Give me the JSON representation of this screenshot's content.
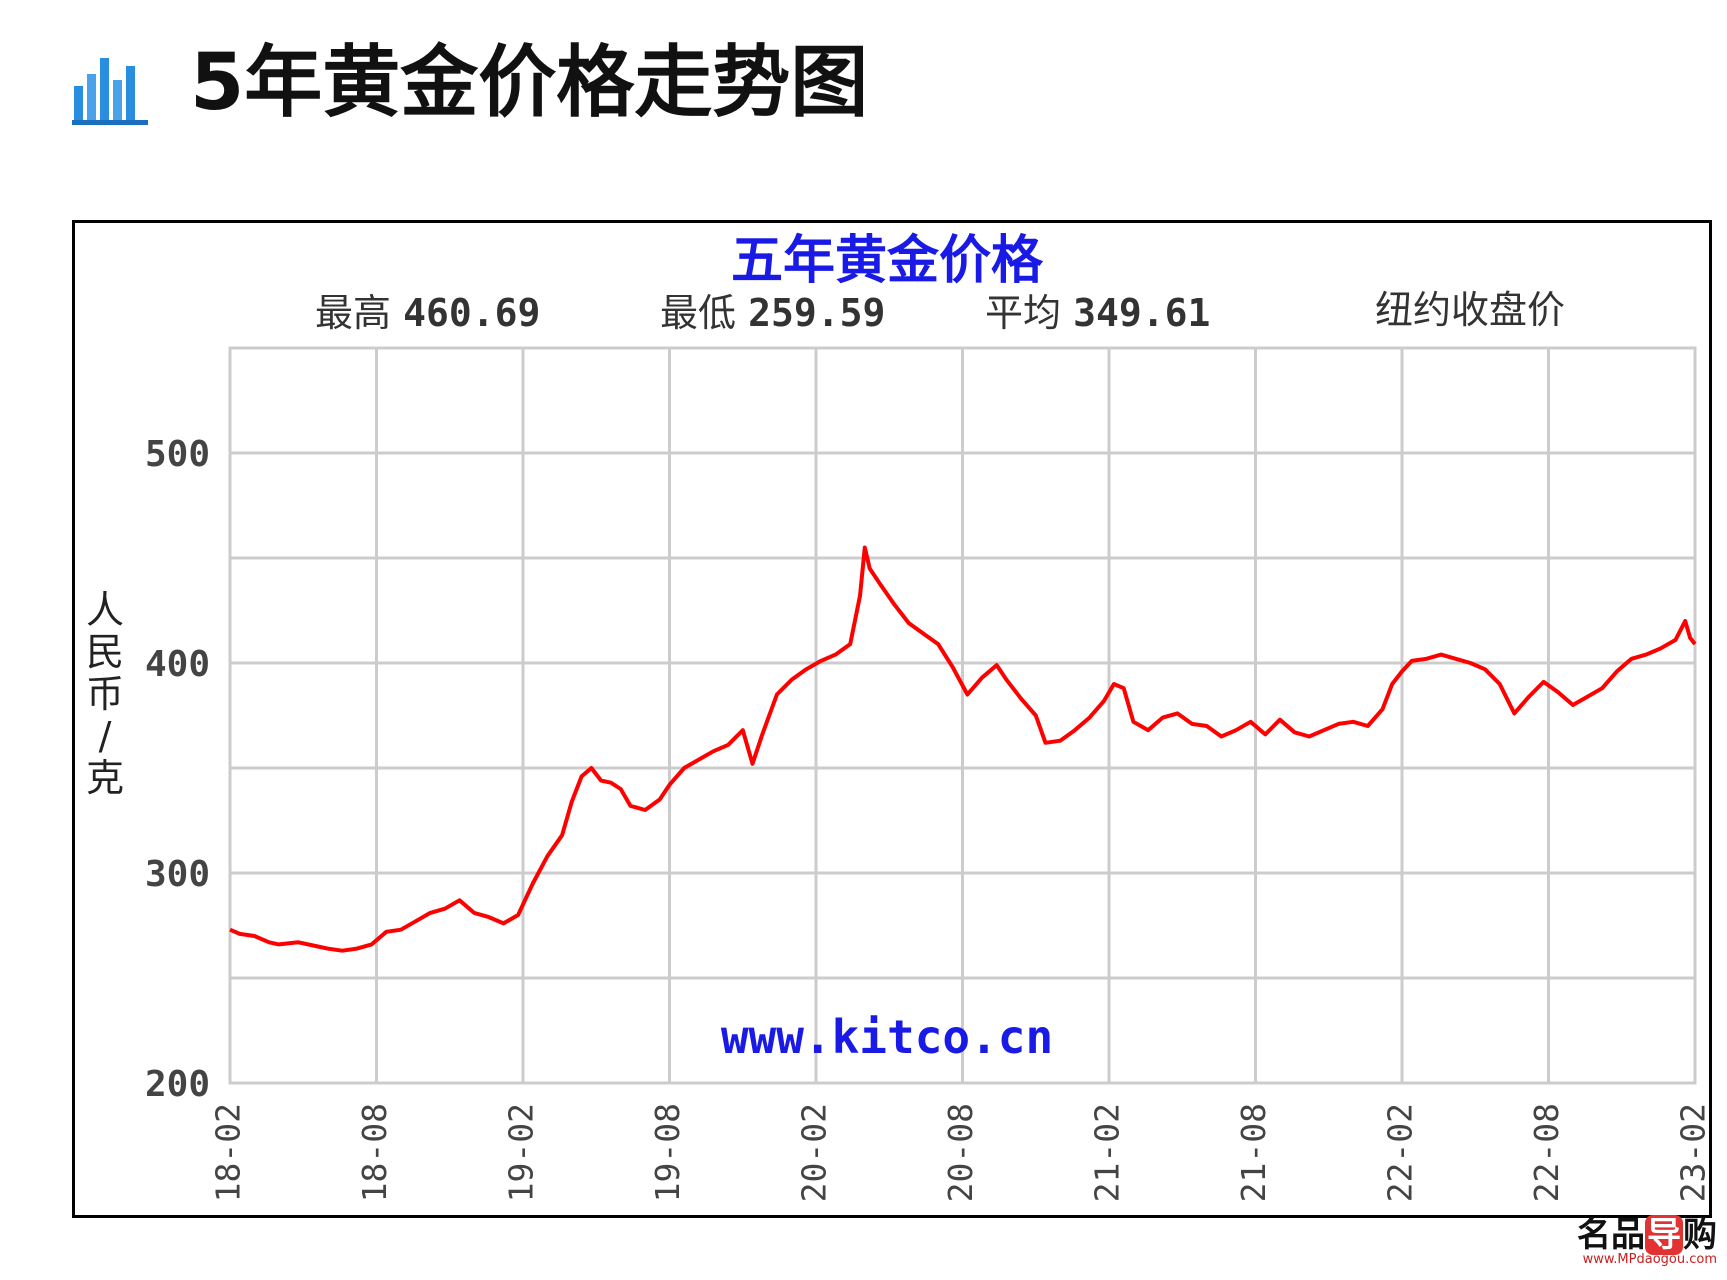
{
  "header": {
    "title": "5年黄金价格走势图",
    "icon": "bar-chart-icon"
  },
  "colors": {
    "line": "#ff0000",
    "title": "#1a1ae6",
    "grid": "#cccccc",
    "icon": "#2a8ee0"
  },
  "watermark": {
    "logo_a": "名品",
    "logo_b": "导",
    "logo_c": "购",
    "url": "www.MPdaogou.com"
  },
  "chart_data": {
    "type": "line",
    "title": "五年黄金价格",
    "stats": [
      {
        "label": "最高",
        "value": "460.69"
      },
      {
        "label": "最低",
        "value": "259.59"
      },
      {
        "label": "平均",
        "value": "349.61"
      }
    ],
    "note": "纽约收盘价",
    "ylabel": "人民币/克",
    "source": "www.kitco.cn",
    "ylim": [
      200,
      550
    ],
    "yticks": [
      200,
      300,
      400,
      500
    ],
    "grid": true,
    "xticks": [
      "18-02",
      "18-08",
      "19-02",
      "19-08",
      "20-02",
      "20-08",
      "21-02",
      "21-08",
      "22-02",
      "22-08",
      "23-02"
    ],
    "series": [
      {
        "points": [
          [
            0,
            273
          ],
          [
            0.2,
            271
          ],
          [
            0.5,
            270
          ],
          [
            0.8,
            267
          ],
          [
            1.0,
            266
          ],
          [
            1.4,
            267
          ],
          [
            1.8,
            265
          ],
          [
            2.0,
            264
          ],
          [
            2.3,
            263
          ],
          [
            2.6,
            264
          ],
          [
            2.9,
            266
          ],
          [
            3.2,
            272
          ],
          [
            3.5,
            273
          ],
          [
            3.8,
            277
          ],
          [
            4.1,
            281
          ],
          [
            4.4,
            283
          ],
          [
            4.7,
            287
          ],
          [
            5.0,
            281
          ],
          [
            5.3,
            279
          ],
          [
            5.6,
            276
          ],
          [
            5.9,
            280
          ],
          [
            6.2,
            295
          ],
          [
            6.5,
            308
          ],
          [
            6.8,
            318
          ],
          [
            7.0,
            334
          ],
          [
            7.2,
            346
          ],
          [
            7.4,
            350
          ],
          [
            7.6,
            344
          ],
          [
            7.8,
            343
          ],
          [
            8.0,
            340
          ],
          [
            8.2,
            332
          ],
          [
            8.5,
            330
          ],
          [
            8.8,
            335
          ],
          [
            9.0,
            342
          ],
          [
            9.3,
            350
          ],
          [
            9.6,
            354
          ],
          [
            9.9,
            358
          ],
          [
            10.2,
            361
          ],
          [
            10.5,
            368
          ],
          [
            10.7,
            352
          ],
          [
            10.9,
            366
          ],
          [
            11.2,
            385
          ],
          [
            11.5,
            392
          ],
          [
            11.8,
            397
          ],
          [
            12.1,
            401
          ],
          [
            12.4,
            404
          ],
          [
            12.7,
            409
          ],
          [
            12.9,
            432
          ],
          [
            13.0,
            455
          ],
          [
            13.1,
            445
          ],
          [
            13.3,
            438
          ],
          [
            13.6,
            428
          ],
          [
            13.9,
            419
          ],
          [
            14.2,
            414
          ],
          [
            14.5,
            409
          ],
          [
            14.8,
            398
          ],
          [
            15.1,
            385
          ],
          [
            15.4,
            393
          ],
          [
            15.7,
            399
          ],
          [
            15.9,
            392
          ],
          [
            16.2,
            383
          ],
          [
            16.5,
            375
          ],
          [
            16.7,
            362
          ],
          [
            17.0,
            363
          ],
          [
            17.3,
            368
          ],
          [
            17.6,
            374
          ],
          [
            17.9,
            382
          ],
          [
            18.1,
            390
          ],
          [
            18.3,
            388
          ],
          [
            18.5,
            372
          ],
          [
            18.8,
            368
          ],
          [
            19.1,
            374
          ],
          [
            19.4,
            376
          ],
          [
            19.7,
            371
          ],
          [
            20.0,
            370
          ],
          [
            20.3,
            365
          ],
          [
            20.6,
            368
          ],
          [
            20.9,
            372
          ],
          [
            21.2,
            366
          ],
          [
            21.5,
            373
          ],
          [
            21.8,
            367
          ],
          [
            22.1,
            365
          ],
          [
            22.4,
            368
          ],
          [
            22.7,
            371
          ],
          [
            23.0,
            372
          ],
          [
            23.3,
            370
          ],
          [
            23.6,
            378
          ],
          [
            23.8,
            390
          ],
          [
            24.0,
            396
          ],
          [
            24.2,
            401
          ],
          [
            24.5,
            402
          ],
          [
            24.8,
            404
          ],
          [
            25.1,
            402
          ],
          [
            25.4,
            400
          ],
          [
            25.7,
            397
          ],
          [
            26.0,
            390
          ],
          [
            26.3,
            376
          ],
          [
            26.6,
            384
          ],
          [
            26.9,
            391
          ],
          [
            27.2,
            386
          ],
          [
            27.5,
            380
          ],
          [
            27.8,
            384
          ],
          [
            28.1,
            388
          ],
          [
            28.4,
            396
          ],
          [
            28.7,
            402
          ],
          [
            29.0,
            404
          ],
          [
            29.3,
            407
          ],
          [
            29.6,
            411
          ],
          [
            29.8,
            420
          ],
          [
            29.9,
            412
          ],
          [
            30.0,
            409
          ]
        ]
      }
    ]
  }
}
